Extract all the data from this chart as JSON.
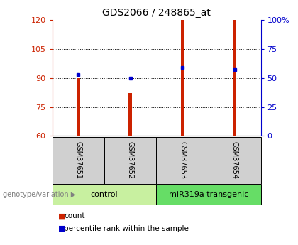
{
  "title": "GDS2066 / 248865_at",
  "samples": [
    "GSM37651",
    "GSM37652",
    "GSM37653",
    "GSM37654"
  ],
  "counts": [
    90,
    82,
    120,
    120
  ],
  "percentiles": [
    53,
    50,
    59,
    57
  ],
  "ylim_left": [
    60,
    120
  ],
  "ylim_right": [
    0,
    100
  ],
  "yticks_left": [
    60,
    75,
    90,
    105,
    120
  ],
  "yticks_right": [
    0,
    25,
    50,
    75,
    100
  ],
  "ytick_labels_right": [
    "0",
    "25",
    "50",
    "75",
    "100%"
  ],
  "bar_color": "#cc2200",
  "square_color": "#0000cc",
  "group_labels": [
    "control",
    "miR319a transgenic"
  ],
  "group_ranges": [
    [
      0,
      2
    ],
    [
      2,
      4
    ]
  ],
  "group_colors": [
    "#c8f0a0",
    "#66dd66"
  ],
  "sample_box_color": "#d0d0d0",
  "genotype_label": "genotype/variation",
  "legend_count_label": "count",
  "legend_percentile_label": "percentile rank within the sample",
  "title_fontsize": 10,
  "tick_fontsize": 8,
  "bar_width": 0.07
}
